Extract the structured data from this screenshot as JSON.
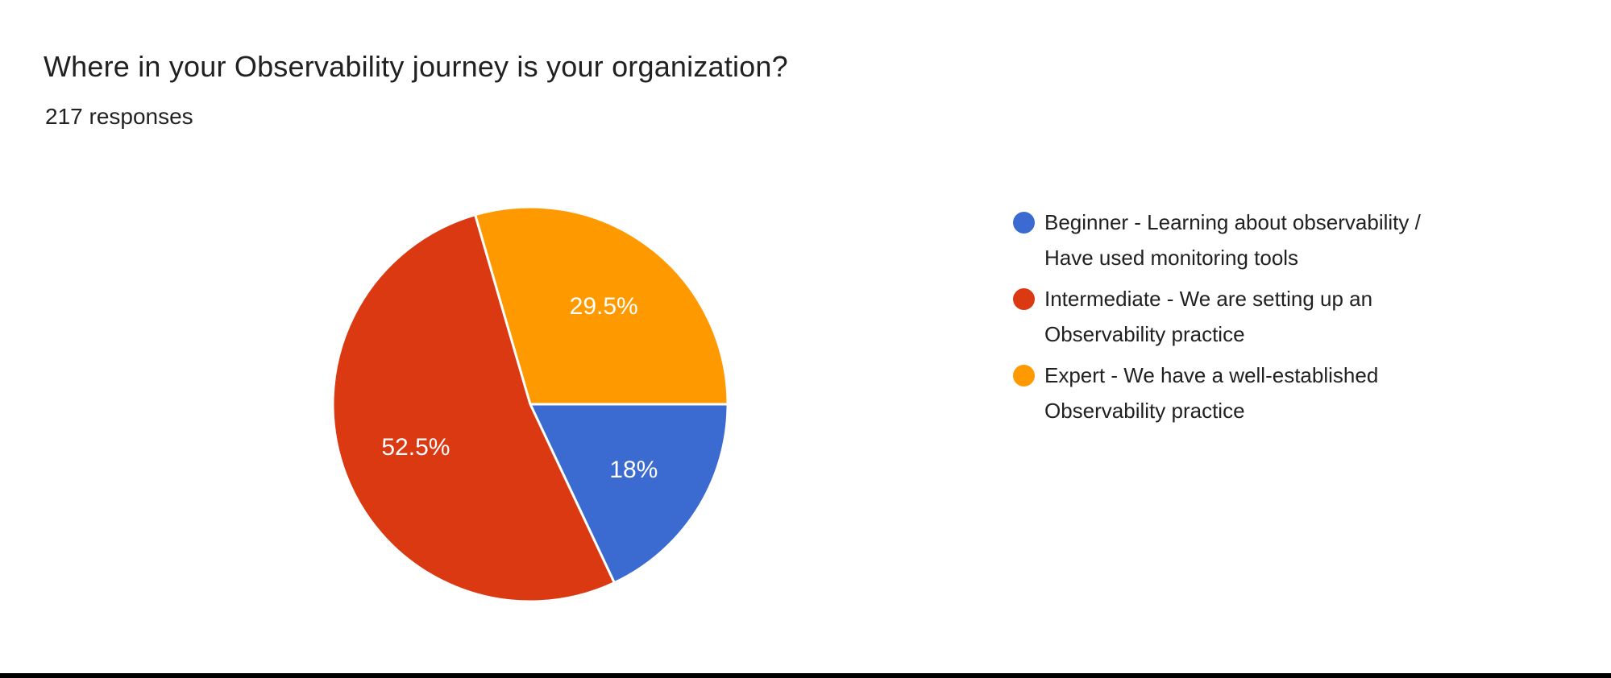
{
  "header": {
    "title": "Where in your Observability journey is your organization?",
    "responses": "217 responses"
  },
  "chart_data": {
    "type": "pie",
    "title": "Where in your Observability journey is your organization?",
    "subtitle": "217 responses",
    "total_responses": 217,
    "legend_position": "right",
    "direction": "clockwise",
    "start_angle_deg_from_3_oclock": 0,
    "slice_label_color": "#FFFFFF",
    "slice_separator_color": "#FFFFFF",
    "slices": [
      {
        "name": "beginner",
        "label": "Beginner - Learning about observability / Have used monitoring tools",
        "legend_lines": [
          "Beginner - Learning about observability /",
          "Have used monitoring tools"
        ],
        "value_pct": 18,
        "display": "18%",
        "color": "#3B6BD0"
      },
      {
        "name": "intermediate",
        "label": "Intermediate - We are setting up an Observability practice",
        "legend_lines": [
          "Intermediate - We are setting up an",
          "Observability practice"
        ],
        "value_pct": 52.5,
        "display": "52.5%",
        "color": "#DB3912"
      },
      {
        "name": "expert",
        "label": "Expert - We have a well-established Observability practice",
        "legend_lines": [
          "Expert - We have a well-established",
          "Observability practice"
        ],
        "value_pct": 29.5,
        "display": "29.5%",
        "color": "#FF9900"
      }
    ]
  }
}
